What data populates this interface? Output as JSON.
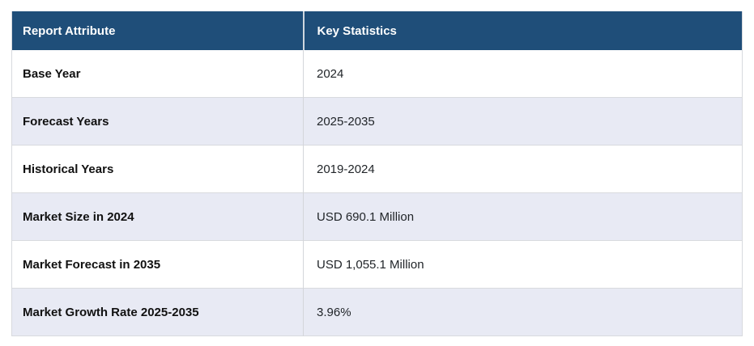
{
  "table": {
    "header": {
      "attribute": "Report Attribute",
      "statistic": "Key Statistics"
    },
    "rows": [
      {
        "attribute": "Base Year",
        "statistic": "2024"
      },
      {
        "attribute": "Forecast Years",
        "statistic": "2025-2035"
      },
      {
        "attribute": "Historical Years",
        "statistic": "2019-2024"
      },
      {
        "attribute": "Market Size in 2024",
        "statistic": "USD 690.1 Million"
      },
      {
        "attribute": "Market Forecast in 2035",
        "statistic": "USD 1,055.1 Million"
      },
      {
        "attribute": "Market Growth Rate 2025-2035",
        "statistic": "3.96%"
      }
    ],
    "colors": {
      "header_bg": "#1F4E79",
      "header_text": "#FFFFFF",
      "stripe_bg": "#E8EAF4",
      "row_bg": "#FFFFFF",
      "border": "#D8DADE",
      "label_text": "#111111",
      "value_text": "#212529"
    }
  },
  "chart_data": {
    "type": "table",
    "title": "",
    "columns": [
      "Report Attribute",
      "Key Statistics"
    ],
    "rows": [
      [
        "Base Year",
        "2024"
      ],
      [
        "Forecast Years",
        "2025-2035"
      ],
      [
        "Historical Years",
        "2019-2024"
      ],
      [
        "Market Size in 2024",
        "USD 690.1 Million"
      ],
      [
        "Market Forecast in 2035",
        "USD 1,055.1 Million"
      ],
      [
        "Market Growth Rate 2025-2035",
        "3.96%"
      ]
    ],
    "notes": {
      "base_year": 2024,
      "forecast_years": [
        2025,
        2035
      ],
      "historical_years": [
        2019,
        2024
      ],
      "market_size_2024_usd_million": 690.1,
      "market_forecast_2035_usd_million": 1055.1,
      "cagr_2025_2035_percent": 3.96
    }
  }
}
